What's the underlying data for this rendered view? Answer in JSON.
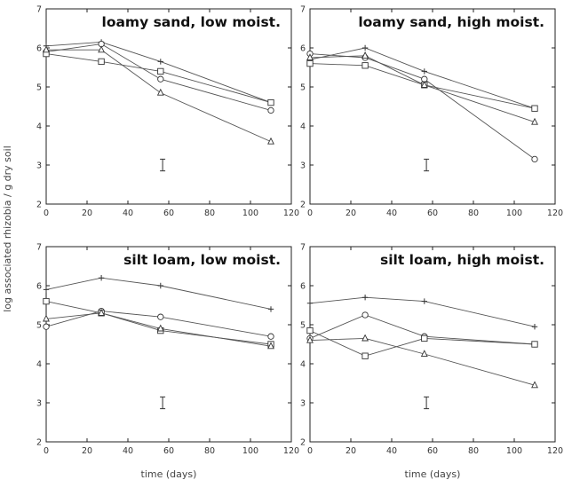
{
  "y_axis_title": "log associated rhizobia / g dry soil",
  "chart_data": [
    {
      "type": "line",
      "title": "loamy sand, low moist.",
      "xlabel": "",
      "ylabel": "",
      "xlim": [
        0,
        120
      ],
      "ylim": [
        2,
        7
      ],
      "xticks": [
        0,
        20,
        40,
        60,
        80,
        100,
        120
      ],
      "yticks": [
        2,
        3,
        4,
        5,
        6,
        7
      ],
      "grid": false,
      "legend": "none",
      "x": [
        0,
        27,
        56,
        110
      ],
      "series": [
        {
          "marker": "plus",
          "values": [
            6.05,
            6.15,
            5.65,
            4.6
          ]
        },
        {
          "marker": "circle",
          "values": [
            5.9,
            6.1,
            5.2,
            4.4
          ]
        },
        {
          "marker": "square",
          "values": [
            5.85,
            5.65,
            5.4,
            4.6
          ]
        },
        {
          "marker": "triangle",
          "values": [
            5.95,
            5.95,
            4.85,
            3.6
          ]
        }
      ],
      "error_bar": {
        "x": 57,
        "y": 3.0,
        "half_height": 0.15
      }
    },
    {
      "type": "line",
      "title": "loamy sand, high moist.",
      "xlabel": "",
      "ylabel": "",
      "xlim": [
        0,
        120
      ],
      "ylim": [
        2,
        7
      ],
      "xticks": [
        0,
        20,
        40,
        60,
        80,
        100,
        120
      ],
      "yticks": [
        2,
        3,
        4,
        5,
        6,
        7
      ],
      "grid": false,
      "legend": "none",
      "x": [
        0,
        27,
        56,
        110
      ],
      "series": [
        {
          "marker": "plus",
          "values": [
            5.7,
            6.0,
            5.4,
            4.45
          ]
        },
        {
          "marker": "circle",
          "values": [
            5.85,
            5.75,
            5.2,
            3.15
          ]
        },
        {
          "marker": "square",
          "values": [
            5.6,
            5.55,
            5.05,
            4.45
          ]
        },
        {
          "marker": "triangle",
          "values": [
            5.75,
            5.8,
            5.05,
            4.1
          ]
        }
      ],
      "error_bar": {
        "x": 57,
        "y": 3.0,
        "half_height": 0.15
      }
    },
    {
      "type": "line",
      "title": "silt loam, low moist.",
      "xlabel": "time (days)",
      "ylabel": "",
      "xlim": [
        0,
        120
      ],
      "ylim": [
        2,
        7
      ],
      "xticks": [
        0,
        20,
        40,
        60,
        80,
        100,
        120
      ],
      "yticks": [
        2,
        3,
        4,
        5,
        6,
        7
      ],
      "grid": false,
      "legend": "none",
      "x": [
        0,
        27,
        56,
        110
      ],
      "series": [
        {
          "marker": "plus",
          "values": [
            5.9,
            6.2,
            6.0,
            5.4
          ]
        },
        {
          "marker": "circle",
          "values": [
            4.95,
            5.35,
            5.2,
            4.7
          ]
        },
        {
          "marker": "square",
          "values": [
            5.6,
            5.3,
            4.85,
            4.5
          ]
        },
        {
          "marker": "triangle",
          "values": [
            5.15,
            5.3,
            4.9,
            4.45
          ]
        }
      ],
      "error_bar": {
        "x": 57,
        "y": 3.0,
        "half_height": 0.15
      }
    },
    {
      "type": "line",
      "title": "silt loam, high moist.",
      "xlabel": "time (days)",
      "ylabel": "",
      "xlim": [
        0,
        120
      ],
      "ylim": [
        2,
        7
      ],
      "xticks": [
        0,
        20,
        40,
        60,
        80,
        100,
        120
      ],
      "yticks": [
        2,
        3,
        4,
        5,
        6,
        7
      ],
      "grid": false,
      "legend": "none",
      "x": [
        0,
        27,
        56,
        110
      ],
      "series": [
        {
          "marker": "plus",
          "values": [
            5.55,
            5.7,
            5.6,
            4.95
          ]
        },
        {
          "marker": "circle",
          "values": [
            4.65,
            5.25,
            4.7,
            4.5
          ]
        },
        {
          "marker": "square",
          "values": [
            4.85,
            4.2,
            4.65,
            4.5
          ]
        },
        {
          "marker": "triangle",
          "values": [
            4.6,
            4.65,
            4.25,
            3.45
          ]
        }
      ],
      "error_bar": {
        "x": 57,
        "y": 3.0,
        "half_height": 0.15
      }
    }
  ]
}
